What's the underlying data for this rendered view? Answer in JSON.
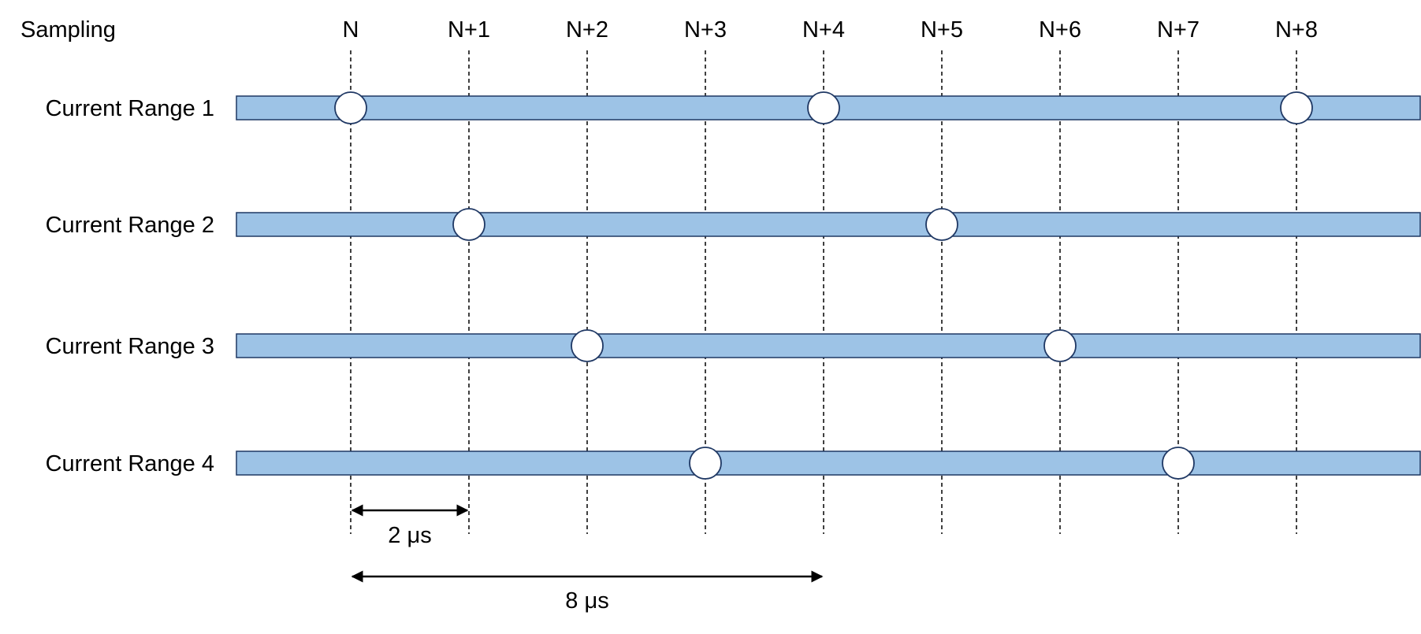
{
  "header": {
    "row_label": "Sampling"
  },
  "ticks": [
    "N",
    "N+1",
    "N+2",
    "N+3",
    "N+4",
    "N+5",
    "N+6",
    "N+7",
    "N+8"
  ],
  "ranges": [
    {
      "label": "Current Range 1",
      "samples": [
        0,
        4,
        8
      ]
    },
    {
      "label": "Current Range 2",
      "samples": [
        1,
        5
      ]
    },
    {
      "label": "Current Range 3",
      "samples": [
        2,
        6
      ]
    },
    {
      "label": "Current Range 4",
      "samples": [
        3,
        7
      ]
    }
  ],
  "dimensions": [
    {
      "label": "2 μs",
      "from": 0,
      "to": 1
    },
    {
      "label": "8 μs",
      "from": 0,
      "to": 4
    }
  ],
  "colors": {
    "bar_fill": "#9dc3e6",
    "bar_stroke": "#1f3864",
    "marker_stroke": "#1f3864",
    "line": "#000000"
  }
}
